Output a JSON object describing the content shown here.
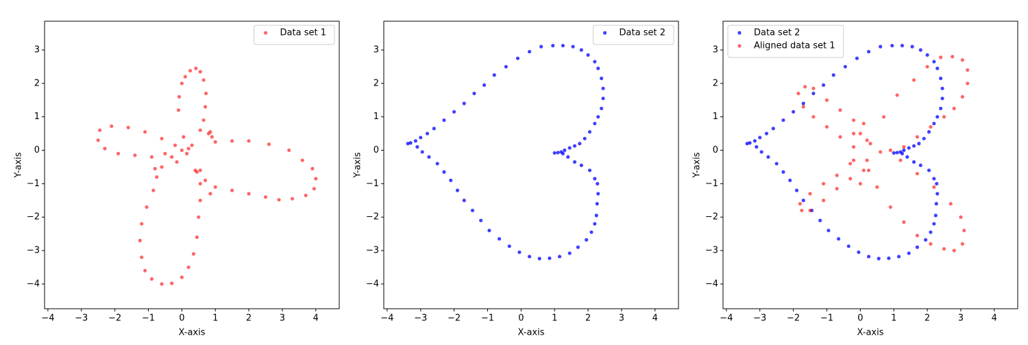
{
  "chart_data": [
    {
      "type": "scatter",
      "xlabel": "X-axis",
      "ylabel": "Y-axis",
      "legend": "upper right",
      "xlim": [
        -4.1,
        4.7
      ],
      "ylim": [
        -4.74,
        3.86
      ],
      "xticks": [
        {
          "value": -4,
          "label": "−4"
        },
        {
          "value": -3,
          "label": "−3"
        },
        {
          "value": -2,
          "label": "−2"
        },
        {
          "value": -1,
          "label": "−1"
        },
        0,
        1,
        2,
        3,
        4
      ],
      "yticks": [
        {
          "value": -4,
          "label": "−4"
        },
        {
          "value": -3,
          "label": "−3"
        },
        {
          "value": -2,
          "label": "−2"
        },
        {
          "value": -1,
          "label": "−1"
        },
        0,
        1,
        2,
        3
      ],
      "series": [
        {
          "name": "Data set 1",
          "color": "#ff0000",
          "opacity": 0.6,
          "x": [
            0,
            0.05,
            -0.1,
            -0.08,
            0,
            0.1,
            0.25,
            0.42,
            0.55,
            0.65,
            0.72,
            0.7,
            0.65,
            0.55,
            0.85,
            0.8,
            0.9,
            1.0,
            1.5,
            2.0,
            2.6,
            3.2,
            3.6,
            3.9,
            4.0,
            3.95,
            3.7,
            3.3,
            2.9,
            2.5,
            2.0,
            1.5,
            1.0,
            0.85,
            0.7,
            0.4,
            0.45,
            0.55,
            0.55,
            0.55,
            0.5,
            0.45,
            0.35,
            0.2,
            0,
            -0.3,
            -0.6,
            -0.9,
            -1.1,
            -1.2,
            -1.25,
            -1.2,
            -1.05,
            -0.85,
            -0.8,
            -0.75,
            -0.6,
            -0.3,
            -0.5,
            -0.9,
            -1.4,
            -1.9,
            -2.3,
            -2.5,
            -2.45,
            -2.1,
            -1.6,
            -1.1,
            -0.6,
            -0.2,
            0.3,
            0.15,
            -0.15,
            0.2
          ],
          "values": [
            0,
            0.4,
            1.2,
            1.6,
            2.0,
            2.2,
            2.38,
            2.45,
            2.35,
            2.1,
            1.7,
            1.3,
            0.9,
            0.6,
            0.55,
            0.5,
            0.4,
            0.25,
            0.28,
            0.28,
            0.18,
            0,
            -0.3,
            -0.55,
            -0.85,
            -1.15,
            -1.35,
            -1.45,
            -1.48,
            -1.4,
            -1.3,
            -1.2,
            -1.1,
            -1.3,
            -0.9,
            -0.6,
            -0.65,
            -0.6,
            -1.0,
            -1.5,
            -2.0,
            -2.6,
            -3.1,
            -3.5,
            -3.8,
            -3.98,
            -4.0,
            -3.85,
            -3.6,
            -3.2,
            -2.7,
            -2.2,
            -1.7,
            -1.2,
            -0.55,
            -0.8,
            -0.5,
            -0.2,
            -0.1,
            -0.2,
            -0.15,
            -0.1,
            0.05,
            0.3,
            0.6,
            0.72,
            0.68,
            0.55,
            0.35,
            0.15,
            0.15,
            -0.1,
            -0.35,
            0.05
          ]
        }
      ]
    },
    {
      "type": "scatter",
      "xlabel": "X-axis",
      "ylabel": "Y-axis",
      "legend": "upper right",
      "xlim": [
        -4.1,
        4.7
      ],
      "ylim": [
        -4.74,
        3.86
      ],
      "xticks": [
        {
          "value": -4,
          "label": "−4"
        },
        {
          "value": -3,
          "label": "−3"
        },
        {
          "value": -2,
          "label": "−2"
        },
        {
          "value": -1,
          "label": "−1"
        },
        0,
        1,
        2,
        3,
        4
      ],
      "yticks": [
        {
          "value": -4,
          "label": "−4"
        },
        {
          "value": -3,
          "label": "−3"
        },
        {
          "value": -2,
          "label": "−2"
        },
        {
          "value": -1,
          "label": "−1"
        },
        0,
        1,
        2,
        3
      ],
      "series": [
        {
          "name": "Data set 2",
          "color": "#0000ff",
          "opacity": 0.75,
          "x": [
            1.0,
            1.1,
            1.2,
            1.3,
            1.45,
            1.6,
            1.75,
            1.9,
            2.05,
            2.2,
            2.3,
            2.4,
            2.45,
            2.45,
            2.4,
            2.3,
            2.2,
            2.0,
            1.8,
            1.55,
            1.25,
            0.95,
            0.6,
            0.25,
            -0.1,
            -0.45,
            -0.8,
            -1.1,
            -1.4,
            -1.7,
            -2.0,
            -2.3,
            -2.6,
            -2.8,
            -3.0,
            -3.15,
            -3.3,
            -3.38,
            -3.1,
            -2.95,
            -2.75,
            -2.5,
            -2.3,
            -2.1,
            -1.9,
            -1.7,
            -1.45,
            -1.2,
            -0.95,
            -0.65,
            -0.35,
            -0.05,
            0.25,
            0.55,
            0.85,
            1.15,
            1.45,
            1.7,
            1.95,
            2.1,
            2.2,
            2.25,
            2.27,
            2.3,
            2.28,
            2.2,
            2.05,
            1.8,
            1.6,
            1.4,
            1.25
          ],
          "values": [
            -0.08,
            -0.07,
            -0.05,
            0,
            0.07,
            0.13,
            0.2,
            0.35,
            0.55,
            0.8,
            1.0,
            1.25,
            1.55,
            1.85,
            2.15,
            2.45,
            2.65,
            2.85,
            3.0,
            3.1,
            3.13,
            3.13,
            3.1,
            2.95,
            2.75,
            2.5,
            2.25,
            1.95,
            1.7,
            1.4,
            1.15,
            0.9,
            0.65,
            0.5,
            0.38,
            0.28,
            0.22,
            0.2,
            0.1,
            -0.05,
            -0.2,
            -0.4,
            -0.65,
            -0.9,
            -1.2,
            -1.5,
            -1.8,
            -2.1,
            -2.4,
            -2.65,
            -2.87,
            -3.05,
            -3.18,
            -3.24,
            -3.23,
            -3.18,
            -3.08,
            -2.9,
            -2.68,
            -2.45,
            -2.2,
            -1.95,
            -1.6,
            -1.3,
            -1.0,
            -0.85,
            -0.6,
            -0.45,
            -0.35,
            -0.2,
            -0.1
          ]
        }
      ]
    },
    {
      "type": "scatter",
      "xlabel": "X-axis",
      "ylabel": "Y-axis",
      "legend": "upper left",
      "xlim": [
        -4.1,
        4.7
      ],
      "ylim": [
        -4.74,
        3.86
      ],
      "xticks": [
        {
          "value": -4,
          "label": "−4"
        },
        {
          "value": -3,
          "label": "−3"
        },
        {
          "value": -2,
          "label": "−2"
        },
        {
          "value": -1,
          "label": "−1"
        },
        0,
        1,
        2,
        3,
        4
      ],
      "yticks": [
        {
          "value": -4,
          "label": "−4"
        },
        {
          "value": -3,
          "label": "−3"
        },
        {
          "value": -2,
          "label": "−2"
        },
        {
          "value": -1,
          "label": "−1"
        },
        0,
        1,
        2,
        3
      ],
      "series": [
        {
          "name": "Data set 2",
          "color": "#0000ff",
          "opacity": 0.75,
          "x": [
            1.0,
            1.1,
            1.2,
            1.3,
            1.45,
            1.6,
            1.75,
            1.9,
            2.05,
            2.2,
            2.3,
            2.4,
            2.45,
            2.45,
            2.4,
            2.3,
            2.2,
            2.0,
            1.8,
            1.55,
            1.25,
            0.95,
            0.6,
            0.25,
            -0.1,
            -0.45,
            -0.8,
            -1.1,
            -1.4,
            -1.7,
            -2.0,
            -2.3,
            -2.6,
            -2.8,
            -3.0,
            -3.15,
            -3.3,
            -3.38,
            -3.1,
            -2.95,
            -2.75,
            -2.5,
            -2.3,
            -2.1,
            -1.9,
            -1.7,
            -1.45,
            -1.2,
            -0.95,
            -0.65,
            -0.35,
            -0.05,
            0.25,
            0.55,
            0.85,
            1.15,
            1.45,
            1.7,
            1.95,
            2.1,
            2.2,
            2.25,
            2.27,
            2.3,
            2.28,
            2.2,
            2.05,
            1.8,
            1.6,
            1.4,
            1.25
          ],
          "values": [
            -0.08,
            -0.07,
            -0.05,
            0,
            0.07,
            0.13,
            0.2,
            0.35,
            0.55,
            0.8,
            1.0,
            1.25,
            1.55,
            1.85,
            2.15,
            2.45,
            2.65,
            2.85,
            3.0,
            3.1,
            3.13,
            3.13,
            3.1,
            2.95,
            2.75,
            2.5,
            2.25,
            1.95,
            1.7,
            1.4,
            1.15,
            0.9,
            0.65,
            0.5,
            0.38,
            0.28,
            0.22,
            0.2,
            0.1,
            -0.05,
            -0.2,
            -0.4,
            -0.65,
            -0.9,
            -1.2,
            -1.5,
            -1.8,
            -2.1,
            -2.4,
            -2.65,
            -2.87,
            -3.05,
            -3.18,
            -3.24,
            -3.23,
            -3.18,
            -3.08,
            -2.9,
            -2.68,
            -2.45,
            -2.2,
            -1.95,
            -1.6,
            -1.3,
            -1.0,
            -0.85,
            -0.6,
            -0.45,
            -0.35,
            -0.2,
            -0.1
          ]
        },
        {
          "name": "Aligned data set 1",
          "color": "#ff0000",
          "opacity": 0.6,
          "x": [
            0.3,
            0.7,
            1.1,
            1.6,
            2.0,
            2.4,
            2.75,
            3.05,
            3.2,
            3.2,
            3.05,
            2.8,
            2.5,
            2.1,
            1.7,
            1.3,
            1.2,
            1.7,
            2.2,
            2.7,
            3.0,
            3.1,
            3.05,
            2.8,
            2.5,
            2.1,
            1.7,
            1.3,
            0.9,
            0.5,
            0.25,
            -0.2,
            -0.6,
            -1.0,
            -1.4,
            -1.7,
            -1.85,
            -1.65,
            -1.4,
            -1.0,
            -0.6,
            -0.2,
            0.1,
            0.0,
            -0.3,
            -0.7,
            -1.1,
            -1.5,
            -1.8,
            -1.75,
            -1.5,
            -1.1,
            -0.7,
            -0.3,
            0.0,
            0.1,
            -0.2,
            0.2,
            -0.2,
            0.2,
            0.9,
            0.6
          ],
          "values": [
            0.2,
            1.0,
            1.65,
            2.1,
            2.5,
            2.78,
            2.8,
            2.7,
            2.4,
            2.0,
            1.6,
            1.25,
            1.0,
            0.7,
            0.4,
            0.1,
            -0.3,
            -0.7,
            -1.1,
            -1.6,
            -2.0,
            -2.4,
            -2.8,
            -3.0,
            -2.95,
            -2.8,
            -2.55,
            -2.15,
            -1.7,
            -1.1,
            -0.6,
            0.1,
            0.4,
            0.7,
            1.0,
            1.3,
            1.7,
            1.9,
            1.85,
            1.5,
            1.2,
            0.9,
            0.8,
            0.5,
            -0.4,
            -0.75,
            -1.0,
            -1.3,
            -1.6,
            -1.8,
            -1.8,
            -1.5,
            -1.15,
            -0.85,
            -1.0,
            -0.6,
            0.5,
            0.3,
            -0.3,
            -0.3,
            0.0,
            -0.05
          ]
        }
      ]
    }
  ]
}
